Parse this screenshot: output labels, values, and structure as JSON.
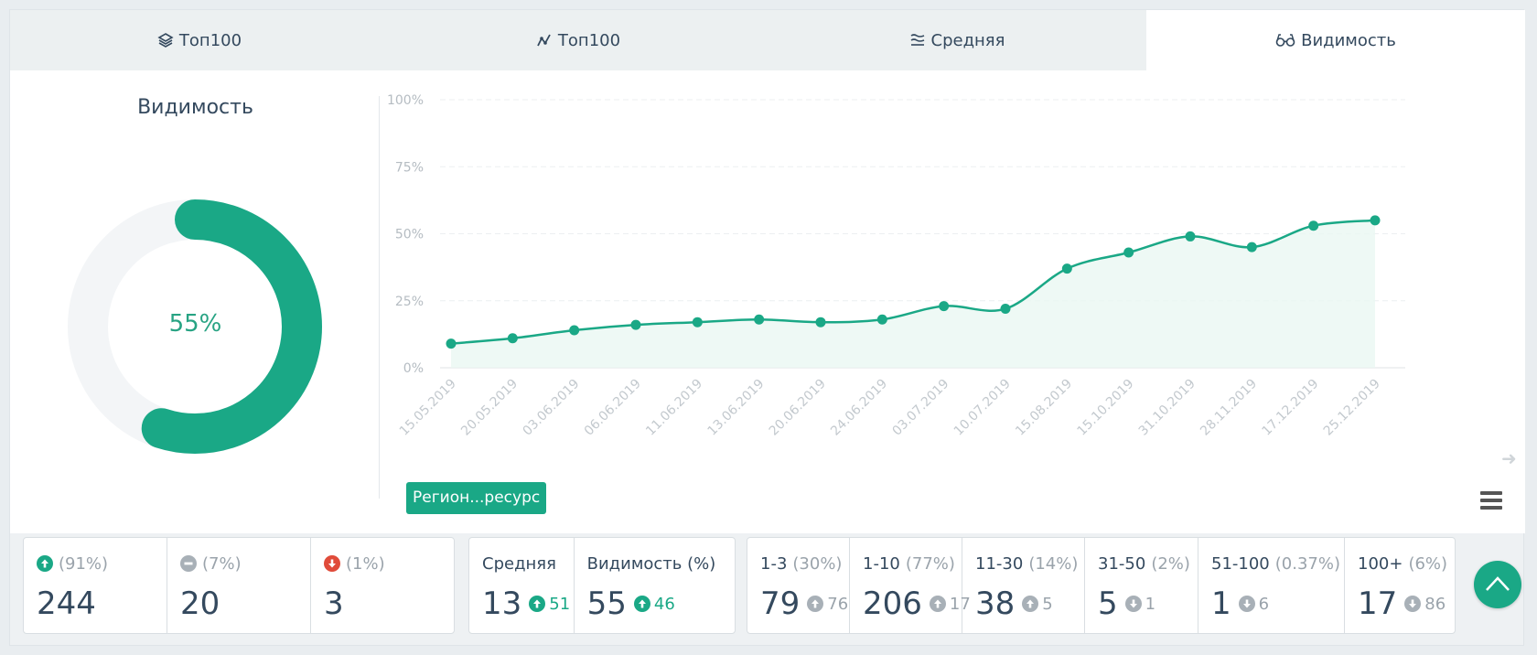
{
  "tabs": [
    {
      "label": "Топ100",
      "icon": "layers-icon"
    },
    {
      "label": "Топ100",
      "icon": "trend-icon"
    },
    {
      "label": "Средняя",
      "icon": "waves-icon"
    },
    {
      "label": "Видимость",
      "icon": "glasses-icon",
      "active": true
    }
  ],
  "donut": {
    "title": "Видимость",
    "value_label": "55%",
    "value": 55,
    "color": "#1aa886",
    "track_color": "#f3f5f7"
  },
  "chart_data": {
    "type": "area",
    "x": [
      "15.05.2019",
      "20.05.2019",
      "03.06.2019",
      "06.06.2019",
      "11.06.2019",
      "13.06.2019",
      "20.06.2019",
      "24.06.2019",
      "03.07.2019",
      "10.07.2019",
      "15.08.2019",
      "15.10.2019",
      "31.10.2019",
      "28.11.2019",
      "17.12.2019",
      "25.12.2019"
    ],
    "series": [
      {
        "values": [
          9,
          11,
          14,
          16,
          17,
          18,
          17,
          18,
          23,
          22,
          37,
          43,
          49,
          45,
          53,
          55
        ],
        "color": "#1aa886"
      }
    ],
    "yticks": [
      "0%",
      "25%",
      "50%",
      "75%",
      "100%"
    ],
    "ylim": [
      0,
      100
    ],
    "grid": true
  },
  "region_button": "Регион...ресурс",
  "stats": {
    "changes": [
      {
        "pct": "(91%)",
        "value": "244",
        "icon": "arrow-up-circle-icon",
        "color": "#1aa886"
      },
      {
        "pct": "(7%)",
        "value": "20",
        "icon": "minus-circle-icon",
        "color": "#a8b0b7"
      },
      {
        "pct": "(1%)",
        "value": "3",
        "icon": "arrow-down-circle-icon",
        "color": "#e04b3a"
      }
    ],
    "metrics": [
      {
        "label": "Средняя",
        "value": "13",
        "delta": "51"
      },
      {
        "label": "Видимость (%)",
        "value": "55",
        "delta": "46"
      }
    ],
    "ranges": [
      {
        "label": "1-3",
        "pct": "(30%)",
        "value": "79",
        "delta": "76",
        "dir": "up"
      },
      {
        "label": "1-10",
        "pct": "(77%)",
        "value": "206",
        "delta": "17",
        "dir": "up"
      },
      {
        "label": "11-30",
        "pct": "(14%)",
        "value": "38",
        "delta": "5",
        "dir": "up"
      },
      {
        "label": "31-50",
        "pct": "(2%)",
        "value": "5",
        "delta": "1",
        "dir": "down"
      },
      {
        "label": "51-100",
        "pct": "(0.37%)",
        "value": "1",
        "delta": "6",
        "dir": "down"
      },
      {
        "label": "100+",
        "pct": "(6%)",
        "value": "17",
        "delta": "86",
        "dir": "down"
      }
    ]
  }
}
